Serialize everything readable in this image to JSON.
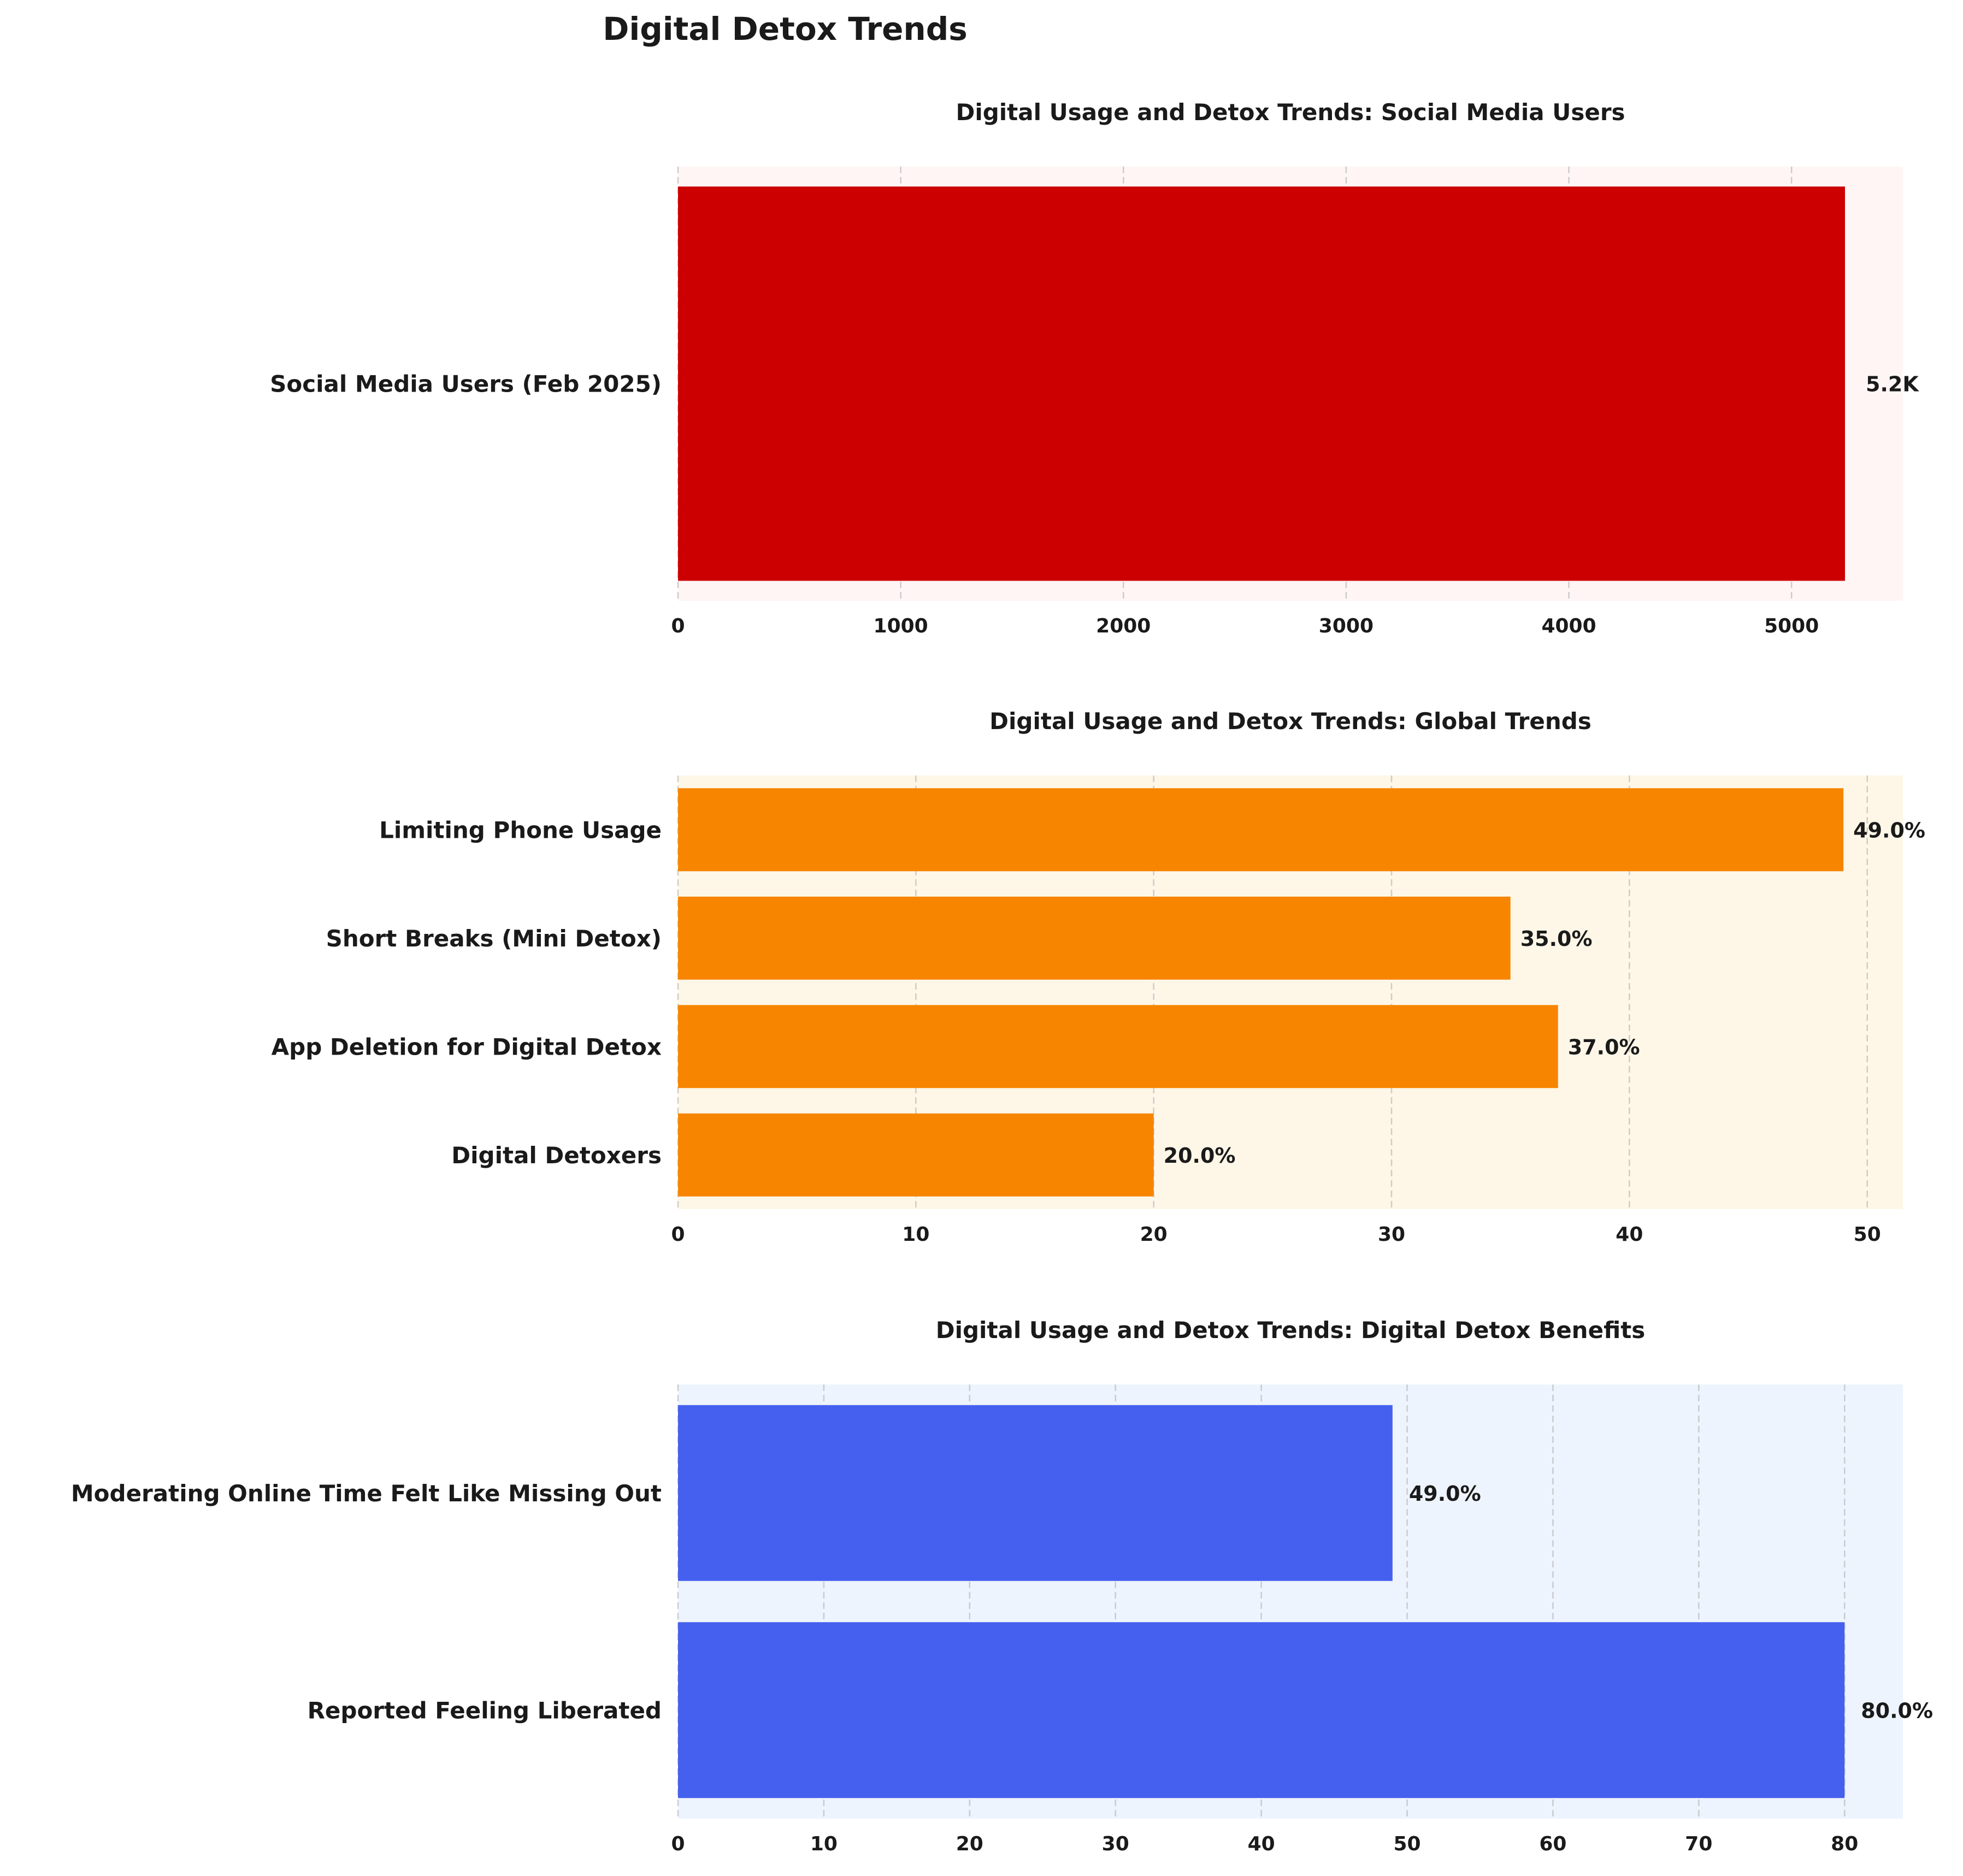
{
  "figure_title": "Digital Detox Trends",
  "chart_data": [
    {
      "type": "bar",
      "orientation": "horizontal",
      "title": "Digital Usage and Detox Trends: Social Media Users",
      "categories": [
        "Social Media Users (Feb 2025)"
      ],
      "values": [
        5240
      ],
      "value_labels": [
        "5.2K"
      ],
      "xlim": [
        0,
        5500
      ],
      "xticks": [
        0,
        1000,
        2000,
        3000,
        4000,
        5000
      ],
      "xtick_labels": [
        "0",
        "1000",
        "2000",
        "3000",
        "4000",
        "5000"
      ],
      "grid": "x-dashed",
      "bar_color": "#cc0000",
      "background_color": "#fff5f5"
    },
    {
      "type": "bar",
      "orientation": "horizontal",
      "title": "Digital Usage and Detox Trends: Global Trends",
      "categories": [
        "Limiting Phone Usage",
        "Short Breaks (Mini Detox)",
        "App Deletion for Digital Detox",
        "Digital Detoxers"
      ],
      "values": [
        49,
        35,
        37,
        20
      ],
      "value_labels": [
        "49.0%",
        "35.0%",
        "37.0%",
        "20.0%"
      ],
      "xlim": [
        0,
        51.5
      ],
      "xticks": [
        0,
        10,
        20,
        30,
        40,
        50
      ],
      "xtick_labels": [
        "0",
        "10",
        "20",
        "30",
        "40",
        "50"
      ],
      "grid": "x-dashed",
      "bar_color": "#f88500",
      "background_color": "#fef7e8"
    },
    {
      "type": "bar",
      "orientation": "horizontal",
      "title": "Digital Usage and Detox Trends: Digital Detox Benefits",
      "categories": [
        "Moderating Online Time Felt Like Missing Out",
        "Reported Feeling Liberated"
      ],
      "values": [
        49,
        80
      ],
      "value_labels": [
        "49.0%",
        "80.0%"
      ],
      "xlim": [
        0,
        84
      ],
      "xticks": [
        0,
        10,
        20,
        30,
        40,
        50,
        60,
        70,
        80
      ],
      "xtick_labels": [
        "0",
        "10",
        "20",
        "30",
        "40",
        "50",
        "60",
        "70",
        "80"
      ],
      "grid": "x-dashed",
      "bar_color": "#4560ee",
      "background_color": "#eef4fd"
    }
  ]
}
